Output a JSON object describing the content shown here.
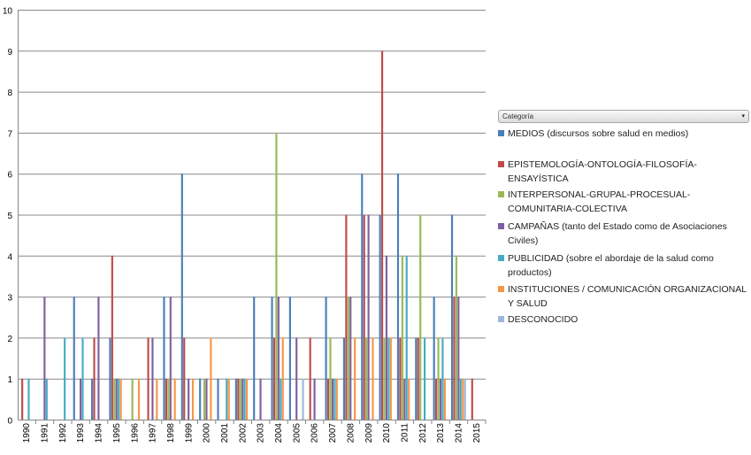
{
  "filter": {
    "label": "Categoría",
    "chevron": "▾"
  },
  "chart_data": {
    "type": "bar",
    "title": "",
    "xlabel": "",
    "ylabel": "",
    "ylim": [
      0,
      10
    ],
    "yticks": [
      "0",
      "1",
      "2",
      "3",
      "4",
      "5",
      "6",
      "7",
      "8",
      "9",
      "10"
    ],
    "grid": true,
    "legend_position": "right",
    "categories": [
      "1990",
      "1991",
      "1992",
      "1993",
      "1994",
      "1995",
      "1996",
      "1997",
      "1998",
      "1999",
      "2000",
      "2001",
      "2002",
      "2003",
      "2004",
      "2005",
      "2006",
      "2007",
      "2008",
      "2009",
      "2010",
      "2011",
      "2012",
      "2013",
      "2014",
      "2015"
    ],
    "series": [
      {
        "name": "MEDIOS (discursos sobre salud en medios)",
        "color": "#4a7ebb",
        "values": [
          0,
          0,
          0,
          3,
          1,
          2,
          0,
          0,
          3,
          6,
          1,
          1,
          1,
          3,
          3,
          3,
          0,
          3,
          2,
          6,
          5,
          6,
          2,
          3,
          5,
          0
        ]
      },
      {
        "name": "EPISTEMOLOGÍA-ONTOLOGÍA-FILOSOFÍA-ENSAYÍSTICA",
        "color": "#be4b48",
        "values": [
          1,
          0,
          0,
          0,
          2,
          4,
          0,
          2,
          1,
          2,
          0,
          0,
          1,
          0,
          2,
          0,
          2,
          1,
          5,
          5,
          9,
          2,
          2,
          1,
          3,
          1
        ]
      },
      {
        "name": "INTERPERSONAL-GRUPAL-PROCESUAL-COMUNITARIA-COLECTIVA",
        "color": "#98b954",
        "values": [
          0,
          0,
          0,
          0,
          0,
          1,
          1,
          0,
          1,
          0,
          1,
          0,
          1,
          0,
          7,
          0,
          0,
          2,
          3,
          2,
          2,
          4,
          5,
          2,
          4,
          0
        ]
      },
      {
        "name": "CAMPAÑAS (tanto del Estado como de Asociaciones Civiles)",
        "color": "#7d60a0",
        "values": [
          0,
          3,
          0,
          1,
          3,
          1,
          0,
          2,
          3,
          1,
          1,
          0,
          1,
          1,
          3,
          2,
          1,
          1,
          3,
          5,
          4,
          1,
          0,
          1,
          3,
          0
        ]
      },
      {
        "name": "PUBLICIDAD (sobre el abordaje de la salud como productos)",
        "color": "#46aac5",
        "values": [
          1,
          1,
          2,
          2,
          0,
          1,
          0,
          0,
          0,
          0,
          0,
          1,
          1,
          0,
          1,
          0,
          0,
          1,
          0,
          0,
          2,
          4,
          2,
          2,
          1,
          0
        ]
      },
      {
        "name": "INSTITUCIONES / COMUNICACIÓN ORGANIZACIONAL Y SALUD",
        "color": "#f79646",
        "values": [
          0,
          0,
          0,
          0,
          0,
          1,
          1,
          1,
          1,
          1,
          2,
          1,
          1,
          0,
          2,
          0,
          0,
          1,
          2,
          2,
          2,
          1,
          0,
          1,
          1,
          0
        ]
      },
      {
        "name": "DESCONOCIDO",
        "color": "#9bb7d9",
        "values": [
          0,
          0,
          0,
          0,
          0,
          0,
          0,
          0,
          0,
          0,
          0,
          0,
          0,
          0,
          0,
          1,
          0,
          0,
          0,
          0,
          0,
          0,
          0,
          0,
          1,
          0
        ]
      }
    ]
  }
}
